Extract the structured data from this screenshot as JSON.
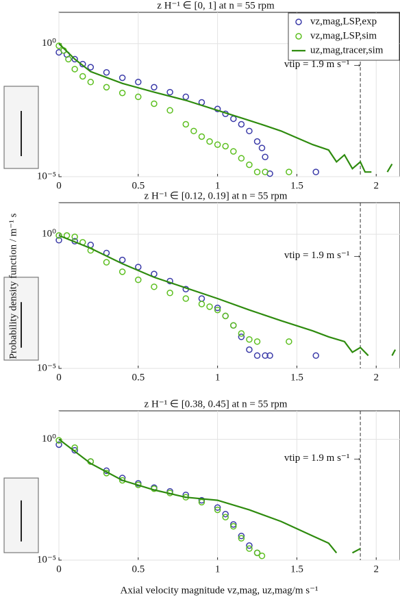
{
  "chart_data": [
    {
      "type": "scatter-line",
      "title": "z H⁻¹ ∈ [0, 1] at n = 55 rpm",
      "log_y": true,
      "grid": true,
      "legend": "upper right",
      "xlim": [
        0,
        2.15
      ],
      "xticks": [
        0,
        0.5,
        1,
        1.5,
        2
      ],
      "ylim": [
        1e-05,
        15
      ],
      "yticks": [
        {
          "value": 1,
          "label": "10⁰"
        },
        {
          "value": 1e-05,
          "label": "10⁻⁵"
        }
      ],
      "vline": 1.9,
      "annotation": "vtip = 1.9 m s⁻¹ →",
      "series": [
        {
          "name": "vz,mag,LSP,exp",
          "color": "#3a3aa8",
          "marker": "circle",
          "x": [
            0,
            0.05,
            0.1,
            0.15,
            0.2,
            0.3,
            0.4,
            0.5,
            0.6,
            0.7,
            0.8,
            0.9,
            1.0,
            1.05,
            1.1,
            1.15,
            1.2,
            1.25,
            1.28,
            1.3,
            1.33,
            1.62
          ],
          "values": [
            0.47,
            0.39,
            0.26,
            0.17,
            0.13,
            0.083,
            0.052,
            0.036,
            0.023,
            0.015,
            0.01,
            0.0062,
            0.0035,
            0.0023,
            0.0015,
            0.00093,
            0.00052,
            0.00021,
            0.00012,
            5.5e-05,
            1.3e-05,
            1.5e-05
          ]
        },
        {
          "name": "vz,mag,LSP,sim",
          "color": "#5cbf1f",
          "marker": "circle",
          "x": [
            0,
            0.03,
            0.06,
            0.1,
            0.15,
            0.2,
            0.3,
            0.4,
            0.5,
            0.6,
            0.7,
            0.8,
            0.85,
            0.9,
            0.95,
            1.0,
            1.05,
            1.1,
            1.15,
            1.2,
            1.25,
            1.3,
            1.45
          ],
          "values": [
            0.83,
            0.55,
            0.26,
            0.11,
            0.059,
            0.036,
            0.023,
            0.014,
            0.01,
            0.0055,
            0.0031,
            0.00093,
            0.00052,
            0.00032,
            0.00021,
            0.00016,
            0.00014,
            8.9e-05,
            4.9e-05,
            2.8e-05,
            1.5e-05,
            1.5e-05,
            1.5e-05
          ]
        },
        {
          "name": "uz,mag,tracer,sim",
          "color": "#2e8b0e",
          "marker": "line",
          "x": [
            0,
            0.1,
            0.2,
            0.4,
            0.6,
            0.8,
            1.0,
            1.1,
            1.2,
            1.3,
            1.4,
            1.5,
            1.6,
            1.7,
            1.75,
            1.8,
            1.85,
            1.9,
            1.93,
            1.97,
            2.0,
            2.07,
            2.1
          ],
          "values": [
            1,
            0.26,
            0.089,
            0.032,
            0.015,
            0.0074,
            0.0031,
            0.002,
            0.0013,
            0.00083,
            0.00052,
            0.00029,
            0.00016,
            0.0001,
            3.6e-05,
            6.6e-05,
            2e-05,
            3.6e-05,
            1.5e-05,
            1.5e-05,
            null,
            1.5e-05,
            3e-05
          ]
        }
      ]
    },
    {
      "type": "scatter-line",
      "title": "z H⁻¹ ∈ [0.12, 0.19] at n = 55 rpm",
      "log_y": true,
      "grid": true,
      "ylabel": "Probability density function / m⁻¹ s",
      "xlim": [
        0,
        2.15
      ],
      "xticks": [
        0,
        0.5,
        1,
        1.5,
        2
      ],
      "ylim": [
        1e-05,
        15
      ],
      "yticks": [
        {
          "value": 1,
          "label": "10⁰"
        },
        {
          "value": 1e-05,
          "label": "10⁻⁵"
        }
      ],
      "vline": 1.9,
      "annotation": "vtip = 1.9 m s⁻¹ →",
      "series": [
        {
          "color": "#3a3aa8",
          "marker": "circle",
          "x": [
            0,
            0.1,
            0.2,
            0.3,
            0.4,
            0.5,
            0.6,
            0.7,
            0.8,
            0.9,
            1.0,
            1.05,
            1.1,
            1.15,
            1.2,
            1.25,
            1.3,
            1.33,
            1.62
          ],
          "values": [
            0.6,
            0.55,
            0.4,
            0.2,
            0.11,
            0.06,
            0.033,
            0.018,
            0.009,
            0.004,
            0.0018,
            0.0009,
            0.0004,
            0.00015,
            5e-05,
            3e-05,
            3e-05,
            3e-05,
            3e-05
          ]
        },
        {
          "color": "#5cbf1f",
          "marker": "circle",
          "x": [
            0,
            0.05,
            0.1,
            0.15,
            0.2,
            0.3,
            0.4,
            0.5,
            0.6,
            0.7,
            0.8,
            0.9,
            0.95,
            1.0,
            1.05,
            1.1,
            1.15,
            1.2,
            1.25,
            1.45
          ],
          "values": [
            0.9,
            0.9,
            0.8,
            0.5,
            0.25,
            0.09,
            0.04,
            0.02,
            0.011,
            0.0065,
            0.004,
            0.0025,
            0.002,
            0.0015,
            0.0009,
            0.0004,
            0.0002,
            0.00012,
            0.0001,
            0.0001
          ]
        },
        {
          "color": "#2e8b0e",
          "marker": "line",
          "x": [
            0,
            0.2,
            0.4,
            0.6,
            0.8,
            1.0,
            1.2,
            1.4,
            1.6,
            1.7,
            1.8,
            1.85,
            1.9,
            1.95,
            2.05,
            2.1,
            2.12
          ],
          "values": [
            0.9,
            0.3,
            0.08,
            0.025,
            0.01,
            0.004,
            0.0015,
            0.0006,
            0.00025,
            0.00015,
            0.0001,
            4e-05,
            6e-05,
            3e-05,
            null,
            3e-05,
            5e-05
          ]
        }
      ]
    },
    {
      "type": "scatter-line",
      "title": "z H⁻¹ ∈ [0.38, 0.45] at n = 55 rpm",
      "log_y": true,
      "grid": true,
      "xlabel": "Axial velocity magnitude vz,mag, uz,mag/m s⁻¹",
      "xlim": [
        0,
        2.15
      ],
      "xticks": [
        0,
        0.5,
        1,
        1.5,
        2
      ],
      "ylim": [
        1e-05,
        15
      ],
      "yticks": [
        {
          "value": 1,
          "label": "10⁰"
        },
        {
          "value": 1e-05,
          "label": "10⁻⁵"
        }
      ],
      "vline": 1.9,
      "annotation": "vtip = 1.9 m s⁻¹ →",
      "series": [
        {
          "color": "#3a3aa8",
          "marker": "circle",
          "x": [
            0,
            0.1,
            0.2,
            0.3,
            0.4,
            0.5,
            0.6,
            0.7,
            0.8,
            0.9,
            1.0,
            1.05,
            1.1,
            1.15,
            1.2,
            1.25
          ],
          "values": [
            0.6,
            0.35,
            0.12,
            0.05,
            0.025,
            0.015,
            0.01,
            0.007,
            0.005,
            0.003,
            0.0015,
            0.0008,
            0.0003,
            0.0001,
            4e-05,
            2e-05
          ]
        },
        {
          "color": "#5cbf1f",
          "marker": "circle",
          "x": [
            0,
            0.1,
            0.2,
            0.3,
            0.4,
            0.5,
            0.6,
            0.7,
            0.8,
            0.9,
            1.0,
            1.05,
            1.1,
            1.15,
            1.2,
            1.25,
            1.28
          ],
          "values": [
            0.9,
            0.45,
            0.12,
            0.04,
            0.02,
            0.013,
            0.009,
            0.006,
            0.004,
            0.0025,
            0.0012,
            0.0006,
            0.00025,
            8e-05,
            3e-05,
            2e-05,
            1.5e-05
          ]
        },
        {
          "color": "#2e8b0e",
          "marker": "line",
          "x": [
            0,
            0.2,
            0.4,
            0.6,
            0.8,
            1.0,
            1.2,
            1.4,
            1.6,
            1.7,
            1.75,
            1.8,
            1.85,
            1.9
          ],
          "values": [
            1,
            0.1,
            0.02,
            0.008,
            0.004,
            0.003,
            0.0012,
            0.0004,
            0.0001,
            5e-05,
            2e-05,
            null,
            2e-05,
            3e-05
          ]
        }
      ]
    }
  ]
}
